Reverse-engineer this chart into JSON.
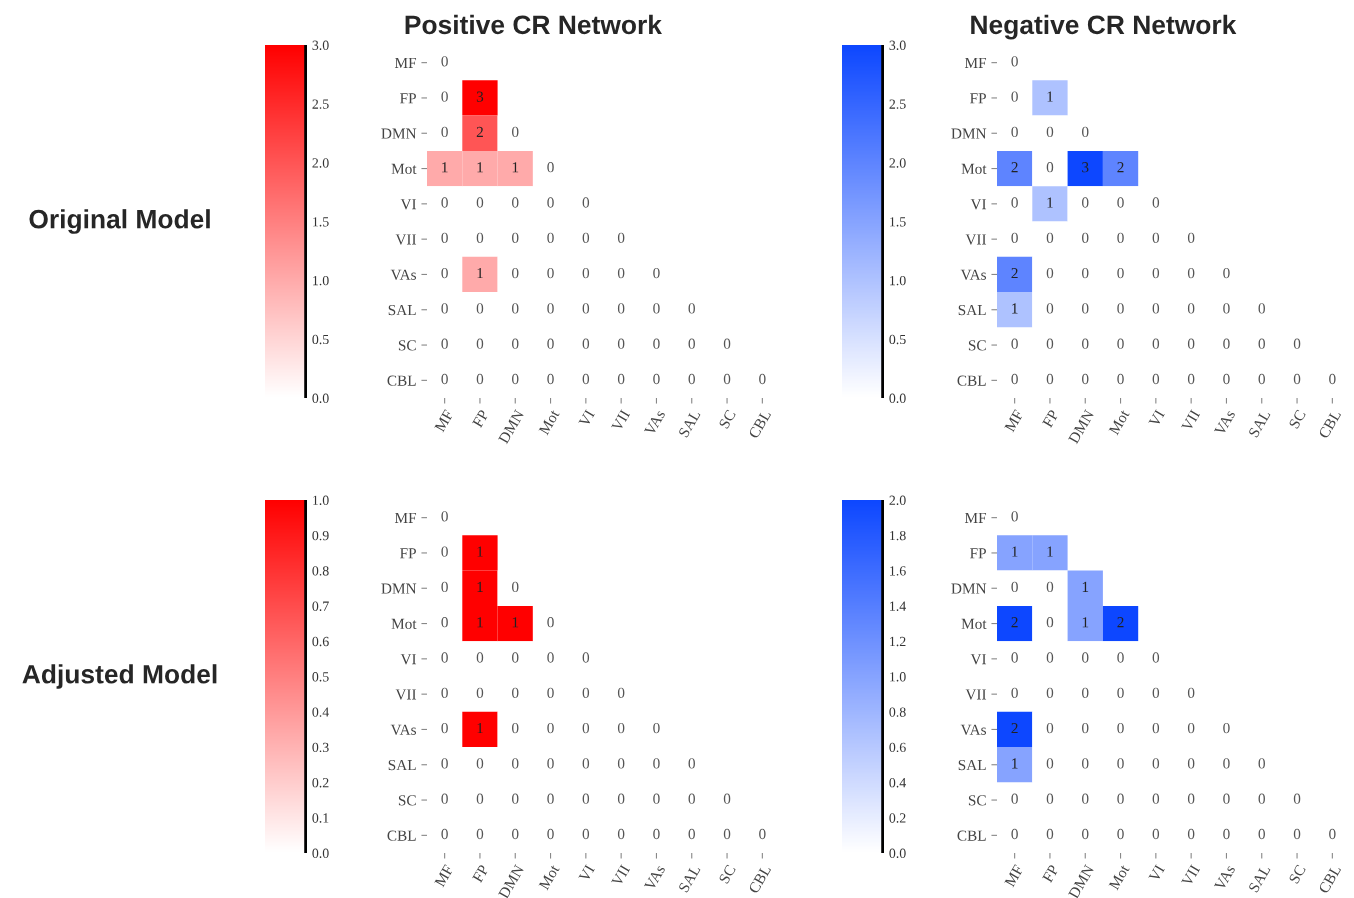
{
  "chart_data": [
    {
      "type": "heatmap",
      "title": "Positive CR Network",
      "annotations": [
        "Original Model"
      ],
      "data_labels": true,
      "categories": [
        "MF",
        "FP",
        "DMN",
        "Mot",
        "VI",
        "VII",
        "VAs",
        "SAL",
        "SC",
        "CBL"
      ],
      "y_categories": [
        "MF",
        "FP",
        "DMN",
        "Mot",
        "VI",
        "VII",
        "VAs",
        "SAL",
        "SC",
        "CBL"
      ],
      "cells": [
        [
          0,
          null,
          null,
          null,
          null,
          null,
          null,
          null,
          null,
          null
        ],
        [
          0,
          3,
          null,
          null,
          null,
          null,
          null,
          null,
          null,
          null
        ],
        [
          0,
          2,
          0,
          null,
          null,
          null,
          null,
          null,
          null,
          null
        ],
        [
          1,
          1,
          1,
          0,
          null,
          null,
          null,
          null,
          null,
          null
        ],
        [
          0,
          0,
          0,
          0,
          0,
          null,
          null,
          null,
          null,
          null
        ],
        [
          0,
          0,
          0,
          0,
          0,
          0,
          null,
          null,
          null,
          null
        ],
        [
          0,
          1,
          0,
          0,
          0,
          0,
          0,
          null,
          null,
          null
        ],
        [
          0,
          0,
          0,
          0,
          0,
          0,
          0,
          0,
          null,
          null
        ],
        [
          0,
          0,
          0,
          0,
          0,
          0,
          0,
          0,
          0,
          null
        ],
        [
          0,
          0,
          0,
          0,
          0,
          0,
          0,
          0,
          0,
          0
        ]
      ],
      "clim": [
        0,
        3
      ],
      "cticks": [
        {
          "value": 0,
          "label": "0.0"
        },
        {
          "value": 0.5,
          "label": "0.5"
        },
        {
          "value": 1,
          "label": "1.0"
        },
        {
          "value": 1.5,
          "label": "1.5"
        },
        {
          "value": 2,
          "label": "2.0"
        },
        {
          "value": 2.5,
          "label": "2.5"
        },
        {
          "value": 3,
          "label": "3.0"
        }
      ]
    },
    {
      "type": "heatmap",
      "title": "Negative CR Network",
      "data_labels": true,
      "categories": [
        "MF",
        "FP",
        "DMN",
        "Mot",
        "VI",
        "VII",
        "VAs",
        "SAL",
        "SC",
        "CBL"
      ],
      "y_categories": [
        "MF",
        "FP",
        "DMN",
        "Mot",
        "VI",
        "VII",
        "VAs",
        "SAL",
        "SC",
        "CBL"
      ],
      "cells": [
        [
          0,
          null,
          null,
          null,
          null,
          null,
          null,
          null,
          null,
          null
        ],
        [
          0,
          1,
          null,
          null,
          null,
          null,
          null,
          null,
          null,
          null
        ],
        [
          0,
          0,
          0,
          null,
          null,
          null,
          null,
          null,
          null,
          null
        ],
        [
          2,
          0,
          3,
          2,
          null,
          null,
          null,
          null,
          null,
          null
        ],
        [
          0,
          1,
          0,
          0,
          0,
          null,
          null,
          null,
          null,
          null
        ],
        [
          0,
          0,
          0,
          0,
          0,
          0,
          null,
          null,
          null,
          null
        ],
        [
          2,
          0,
          0,
          0,
          0,
          0,
          0,
          null,
          null,
          null
        ],
        [
          1,
          0,
          0,
          0,
          0,
          0,
          0,
          0,
          null,
          null
        ],
        [
          0,
          0,
          0,
          0,
          0,
          0,
          0,
          0,
          0,
          null
        ],
        [
          0,
          0,
          0,
          0,
          0,
          0,
          0,
          0,
          0,
          0
        ]
      ],
      "clim": [
        0,
        3
      ],
      "cticks": [
        {
          "value": 0,
          "label": "0.0"
        },
        {
          "value": 0.5,
          "label": "0.5"
        },
        {
          "value": 1,
          "label": "1.0"
        },
        {
          "value": 1.5,
          "label": "1.5"
        },
        {
          "value": 2,
          "label": "2.0"
        },
        {
          "value": 2.5,
          "label": "2.5"
        },
        {
          "value": 3,
          "label": "3.0"
        }
      ]
    },
    {
      "type": "heatmap",
      "annotations": [
        "Adjusted Model"
      ],
      "data_labels": true,
      "categories": [
        "MF",
        "FP",
        "DMN",
        "Mot",
        "VI",
        "VII",
        "VAs",
        "SAL",
        "SC",
        "CBL"
      ],
      "y_categories": [
        "MF",
        "FP",
        "DMN",
        "Mot",
        "VI",
        "VII",
        "VAs",
        "SAL",
        "SC",
        "CBL"
      ],
      "cells": [
        [
          0,
          null,
          null,
          null,
          null,
          null,
          null,
          null,
          null,
          null
        ],
        [
          0,
          1,
          null,
          null,
          null,
          null,
          null,
          null,
          null,
          null
        ],
        [
          0,
          1,
          0,
          null,
          null,
          null,
          null,
          null,
          null,
          null
        ],
        [
          0,
          1,
          1,
          0,
          null,
          null,
          null,
          null,
          null,
          null
        ],
        [
          0,
          0,
          0,
          0,
          0,
          null,
          null,
          null,
          null,
          null
        ],
        [
          0,
          0,
          0,
          0,
          0,
          0,
          null,
          null,
          null,
          null
        ],
        [
          0,
          1,
          0,
          0,
          0,
          0,
          0,
          null,
          null,
          null
        ],
        [
          0,
          0,
          0,
          0,
          0,
          0,
          0,
          0,
          null,
          null
        ],
        [
          0,
          0,
          0,
          0,
          0,
          0,
          0,
          0,
          0,
          null
        ],
        [
          0,
          0,
          0,
          0,
          0,
          0,
          0,
          0,
          0,
          0
        ]
      ],
      "clim": [
        0,
        1
      ],
      "cticks": [
        {
          "value": 0,
          "label": "0.0"
        },
        {
          "value": 0.1,
          "label": "0.1"
        },
        {
          "value": 0.2,
          "label": "0.2"
        },
        {
          "value": 0.3,
          "label": "0.3"
        },
        {
          "value": 0.4,
          "label": "0.4"
        },
        {
          "value": 0.5,
          "label": "0.5"
        },
        {
          "value": 0.6,
          "label": "0.6"
        },
        {
          "value": 0.7,
          "label": "0.7"
        },
        {
          "value": 0.8,
          "label": "0.8"
        },
        {
          "value": 0.9,
          "label": "0.9"
        },
        {
          "value": 1,
          "label": "1.0"
        }
      ]
    },
    {
      "type": "heatmap",
      "data_labels": true,
      "categories": [
        "MF",
        "FP",
        "DMN",
        "Mot",
        "VI",
        "VII",
        "VAs",
        "SAL",
        "SC",
        "CBL"
      ],
      "y_categories": [
        "MF",
        "FP",
        "DMN",
        "Mot",
        "VI",
        "VII",
        "VAs",
        "SAL",
        "SC",
        "CBL"
      ],
      "cells": [
        [
          0,
          null,
          null,
          null,
          null,
          null,
          null,
          null,
          null,
          null
        ],
        [
          1,
          1,
          null,
          null,
          null,
          null,
          null,
          null,
          null,
          null
        ],
        [
          0,
          0,
          1,
          null,
          null,
          null,
          null,
          null,
          null,
          null
        ],
        [
          2,
          0,
          1,
          2,
          null,
          null,
          null,
          null,
          null,
          null
        ],
        [
          0,
          0,
          0,
          0,
          0,
          null,
          null,
          null,
          null,
          null
        ],
        [
          0,
          0,
          0,
          0,
          0,
          0,
          null,
          null,
          null,
          null
        ],
        [
          2,
          0,
          0,
          0,
          0,
          0,
          0,
          null,
          null,
          null
        ],
        [
          1,
          0,
          0,
          0,
          0,
          0,
          0,
          0,
          null,
          null
        ],
        [
          0,
          0,
          0,
          0,
          0,
          0,
          0,
          0,
          0,
          null
        ],
        [
          0,
          0,
          0,
          0,
          0,
          0,
          0,
          0,
          0,
          0
        ]
      ],
      "clim": [
        0,
        2
      ],
      "cticks": [
        {
          "value": 0,
          "label": "0.0"
        },
        {
          "value": 0.2,
          "label": "0.2"
        },
        {
          "value": 0.4,
          "label": "0.4"
        },
        {
          "value": 0.6,
          "label": "0.6"
        },
        {
          "value": 0.8,
          "label": "0.8"
        },
        {
          "value": 1,
          "label": "1.0"
        },
        {
          "value": 1.2,
          "label": "1.2"
        },
        {
          "value": 1.4,
          "label": "1.4"
        },
        {
          "value": 1.6,
          "label": "1.6"
        },
        {
          "value": 1.8,
          "label": "1.8"
        },
        {
          "value": 2,
          "label": "2.0"
        }
      ]
    }
  ]
}
